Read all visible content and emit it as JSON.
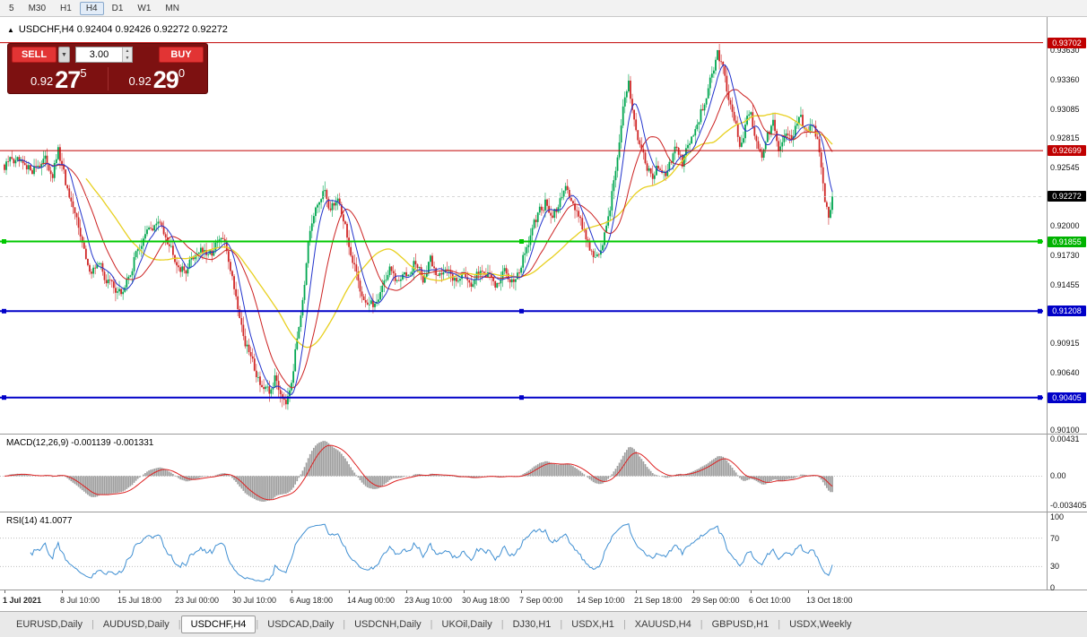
{
  "toolbar": {
    "timeframes": [
      "5",
      "M30",
      "H1",
      "H4",
      "D1",
      "W1",
      "MN"
    ],
    "active_timeframe": "H4"
  },
  "icons": {
    "collapse": "▲",
    "dropdown": "▼",
    "spin_up": "▲",
    "spin_down": "▼",
    "tab_sep": "|"
  },
  "chart_header": {
    "title": "USDCHF,H4 0.92404 0.92426 0.92272 0.92272"
  },
  "trade_panel": {
    "sell_label": "SELL",
    "buy_label": "BUY",
    "lot_value": "3.00",
    "sell_price": {
      "prefix": "0.92",
      "big": "27",
      "sup": "5"
    },
    "buy_price": {
      "prefix": "0.92",
      "big": "29",
      "sup": "0"
    }
  },
  "price_axis": {
    "ticks": [
      "0.93630",
      "0.93360",
      "0.93085",
      "0.92815",
      "0.92545",
      "0.92000",
      "0.91730",
      "0.91455",
      "0.90915",
      "0.90640",
      "0.90100"
    ],
    "badges": [
      {
        "label": "0.93702",
        "color": "#c00000"
      },
      {
        "label": "0.92699",
        "color": "#c00000"
      },
      {
        "label": "0.92272",
        "color": "#000000"
      },
      {
        "label": "0.91855",
        "color": "#00b300"
      },
      {
        "label": "0.91208",
        "color": "#0000c8"
      },
      {
        "label": "0.90405",
        "color": "#0000c8"
      }
    ]
  },
  "macd_pane": {
    "label": "MACD(12,26,9) -0.001139 -0.001331",
    "axis_labels": [
      {
        "text": "0.00431",
        "value": 0.00431
      },
      {
        "text": "0.00",
        "value": 0
      },
      {
        "text": "-0.003405",
        "value": -0.003405
      }
    ]
  },
  "rsi_pane": {
    "label": "RSI(14) 41.0077",
    "axis_labels": [
      {
        "text": "100",
        "value": 100
      },
      {
        "text": "70",
        "value": 70
      },
      {
        "text": "30",
        "value": 30
      },
      {
        "text": "0",
        "value": 0
      }
    ],
    "levels": [
      70,
      30
    ]
  },
  "tabs": {
    "items": [
      "EURUSD,Daily",
      "AUDUSD,Daily",
      "USDCHF,H4",
      "USDCAD,Daily",
      "USDCNH,Daily",
      "UKOil,Daily",
      "DJ30,H1",
      "USDX,H1",
      "XAUUSD,H4",
      "GBPUSD,H1",
      "USDX,Weekly"
    ],
    "active": "USDCHF,H4"
  },
  "chart_data": {
    "type": "candlestick",
    "symbol": "USDCHF",
    "timeframe": "H4",
    "ohlc": {
      "open": 0.92404,
      "high": 0.92426,
      "low": 0.92272,
      "close": 0.92272
    },
    "last_close": 0.92272,
    "bars_total": 448,
    "price_top": 0.9394,
    "price_bottom": 0.9007,
    "up_color": "#00a650",
    "down_color": "#d02828",
    "ma_colors": {
      "fast": "#2233cc",
      "medium": "#cc2222",
      "slow": "#e8d020"
    },
    "ma_periods": {
      "fast": 8,
      "medium": 21,
      "slow": 45
    },
    "hlines": [
      {
        "price": 0.93702,
        "color": "#c00000",
        "width": 1,
        "selected": false
      },
      {
        "price": 0.92699,
        "color": "#c00000",
        "width": 1,
        "selected": false
      },
      {
        "price": 0.91855,
        "color": "#00c800",
        "width": 2,
        "selected": true
      },
      {
        "price": 0.91208,
        "color": "#0000c8",
        "width": 2,
        "selected": true
      },
      {
        "price": 0.90405,
        "color": "#0000c8",
        "width": 2,
        "selected": true
      }
    ],
    "x_labels": [
      "1 Jul 2021",
      "8 Jul 10:00",
      "15 Jul 18:00",
      "23 Jul 00:00",
      "30 Jul 10:00",
      "6 Aug 18:00",
      "14 Aug 00:00",
      "23 Aug 10:00",
      "30 Aug 18:00",
      "7 Sep 00:00",
      "14 Sep 10:00",
      "21 Sep 18:00",
      "29 Sep 00:00",
      "6 Oct 10:00",
      "13 Oct 18:00"
    ],
    "macd_values": {
      "main": -0.001139,
      "signal": -0.001331
    },
    "rsi_value": 41.0077,
    "price_waypoints": [
      [
        0,
        0.9252
      ],
      [
        4,
        0.9262
      ],
      [
        8,
        0.9256
      ],
      [
        12,
        0.9247
      ],
      [
        16,
        0.9255
      ],
      [
        21,
        0.9262
      ],
      [
        26,
        0.925
      ],
      [
        29,
        0.9268
      ],
      [
        33,
        0.9238
      ],
      [
        37,
        0.9208
      ],
      [
        41,
        0.9196
      ],
      [
        45,
        0.9158
      ],
      [
        50,
        0.9165
      ],
      [
        55,
        0.915
      ],
      [
        60,
        0.9143
      ],
      [
        63,
        0.9136
      ],
      [
        67,
        0.9152
      ],
      [
        72,
        0.918
      ],
      [
        77,
        0.9192
      ],
      [
        82,
        0.9202
      ],
      [
        87,
        0.9195
      ],
      [
        92,
        0.9175
      ],
      [
        97,
        0.9158
      ],
      [
        102,
        0.9172
      ],
      [
        106,
        0.9182
      ],
      [
        110,
        0.9168
      ],
      [
        114,
        0.918
      ],
      [
        118,
        0.9186
      ],
      [
        122,
        0.9162
      ],
      [
        126,
        0.9128
      ],
      [
        130,
        0.9092
      ],
      [
        135,
        0.9068
      ],
      [
        140,
        0.905
      ],
      [
        143,
        0.904
      ],
      [
        146,
        0.9058
      ],
      [
        149,
        0.9046
      ],
      [
        152,
        0.9042
      ],
      [
        155,
        0.9062
      ],
      [
        158,
        0.9096
      ],
      [
        161,
        0.9138
      ],
      [
        164,
        0.918
      ],
      [
        168,
        0.9212
      ],
      [
        172,
        0.923
      ],
      [
        176,
        0.9216
      ],
      [
        180,
        0.9226
      ],
      [
        184,
        0.9202
      ],
      [
        188,
        0.9162
      ],
      [
        193,
        0.9138
      ],
      [
        199,
        0.9124
      ],
      [
        204,
        0.9146
      ],
      [
        208,
        0.916
      ],
      [
        212,
        0.9144
      ],
      [
        217,
        0.9156
      ],
      [
        221,
        0.917
      ],
      [
        226,
        0.915
      ],
      [
        230,
        0.9166
      ],
      [
        234,
        0.9153
      ],
      [
        238,
        0.9166
      ],
      [
        242,
        0.9147
      ],
      [
        246,
        0.9158
      ],
      [
        250,
        0.9154
      ],
      [
        254,
        0.9147
      ],
      [
        258,
        0.916
      ],
      [
        262,
        0.9153
      ],
      [
        266,
        0.9147
      ],
      [
        270,
        0.9156
      ],
      [
        274,
        0.9151
      ],
      [
        278,
        0.9161
      ],
      [
        283,
        0.9184
      ],
      [
        288,
        0.9208
      ],
      [
        292,
        0.9224
      ],
      [
        296,
        0.9206
      ],
      [
        300,
        0.922
      ],
      [
        304,
        0.9236
      ],
      [
        308,
        0.922
      ],
      [
        311,
        0.9204
      ],
      [
        315,
        0.9186
      ],
      [
        319,
        0.9172
      ],
      [
        323,
        0.9178
      ],
      [
        327,
        0.9218
      ],
      [
        331,
        0.9268
      ],
      [
        334,
        0.9306
      ],
      [
        337,
        0.9328
      ],
      [
        340,
        0.9302
      ],
      [
        343,
        0.928
      ],
      [
        346,
        0.9262
      ],
      [
        350,
        0.9246
      ],
      [
        354,
        0.9258
      ],
      [
        358,
        0.925
      ],
      [
        362,
        0.9266
      ],
      [
        366,
        0.9256
      ],
      [
        370,
        0.9276
      ],
      [
        374,
        0.9294
      ],
      [
        378,
        0.9316
      ],
      [
        382,
        0.9338
      ],
      [
        385,
        0.936
      ],
      [
        388,
        0.9344
      ],
      [
        391,
        0.9318
      ],
      [
        394,
        0.9298
      ],
      [
        397,
        0.928
      ],
      [
        400,
        0.9294
      ],
      [
        403,
        0.9304
      ],
      [
        406,
        0.928
      ],
      [
        409,
        0.9266
      ],
      [
        412,
        0.9284
      ],
      [
        415,
        0.9294
      ],
      [
        418,
        0.9274
      ],
      [
        421,
        0.9286
      ],
      [
        424,
        0.9276
      ],
      [
        427,
        0.9288
      ],
      [
        430,
        0.9296
      ],
      [
        433,
        0.9286
      ],
      [
        436,
        0.9298
      ],
      [
        439,
        0.9276
      ],
      [
        441,
        0.925
      ],
      [
        443,
        0.9224
      ],
      [
        445,
        0.9205
      ],
      [
        446,
        0.9214
      ],
      [
        447,
        0.92272
      ]
    ]
  }
}
